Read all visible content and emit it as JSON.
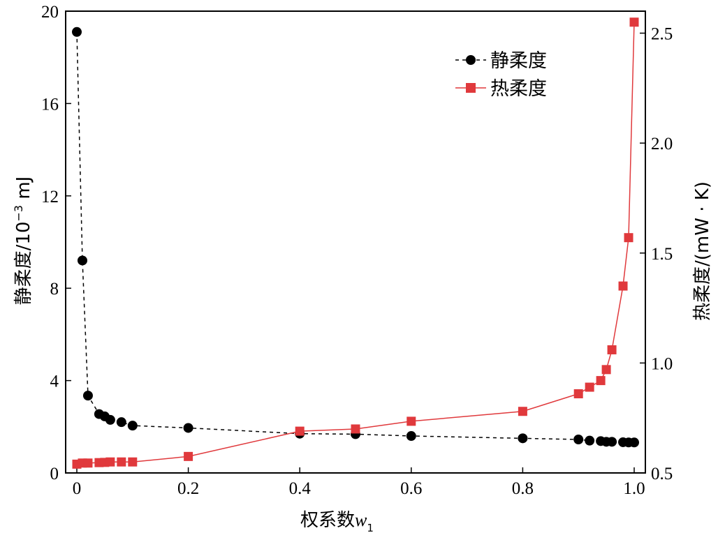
{
  "chart_data": {
    "type": "line",
    "xlabel": "权系数",
    "xlabel_var": "w",
    "xlabel_sub": "1",
    "ylabel_left": "静柔度/10",
    "ylabel_left_exp": "−3",
    "ylabel_left_unit": " mJ",
    "ylabel_right": "热柔度/(mW · K)",
    "xlim": [
      0,
      1.0
    ],
    "ylim_left": [
      0,
      20
    ],
    "ylim_right": [
      0.5,
      2.6
    ],
    "xticks": [
      "0",
      "0.2",
      "0.4",
      "0.6",
      "0.8",
      "1.0"
    ],
    "yticks_left": [
      "0",
      "4",
      "8",
      "12",
      "16",
      "20"
    ],
    "yticks_right": [
      "0.5",
      "1.0",
      "1.5",
      "2.0",
      "2.5"
    ],
    "legend_position": "top-right",
    "series": [
      {
        "name": "静柔度",
        "axis": "left",
        "color": "#000000",
        "line_style": "dashed",
        "marker": "circle",
        "x": [
          0,
          0.01,
          0.02,
          0.04,
          0.05,
          0.06,
          0.08,
          0.1,
          0.2,
          0.4,
          0.5,
          0.6,
          0.8,
          0.9,
          0.92,
          0.94,
          0.95,
          0.96,
          0.98,
          0.99,
          1.0
        ],
        "y": [
          19.1,
          9.2,
          3.35,
          2.55,
          2.45,
          2.3,
          2.2,
          2.05,
          1.95,
          1.7,
          1.68,
          1.6,
          1.5,
          1.45,
          1.4,
          1.38,
          1.35,
          1.35,
          1.33,
          1.32,
          1.32
        ]
      },
      {
        "name": "热柔度",
        "axis": "right",
        "color": "#e0393c",
        "line_style": "solid",
        "marker": "square",
        "x": [
          0,
          0.01,
          0.02,
          0.04,
          0.05,
          0.06,
          0.08,
          0.1,
          0.2,
          0.4,
          0.5,
          0.6,
          0.8,
          0.9,
          0.92,
          0.94,
          0.95,
          0.96,
          0.98,
          0.99,
          1.0
        ],
        "y": [
          0.54,
          0.545,
          0.545,
          0.547,
          0.548,
          0.55,
          0.55,
          0.55,
          0.575,
          0.69,
          0.7,
          0.735,
          0.78,
          0.86,
          0.89,
          0.92,
          0.97,
          1.06,
          1.35,
          1.57,
          2.55
        ]
      }
    ]
  }
}
